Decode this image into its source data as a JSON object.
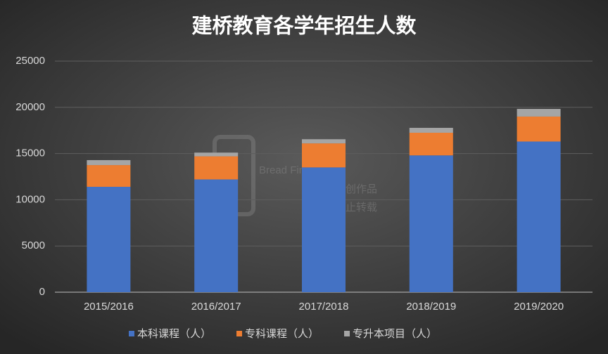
{
  "chart_data": {
    "type": "stacked_bar",
    "title": "建桥教育各学年招生人数",
    "categories": [
      "2015/2016",
      "2016/2017",
      "2017/2018",
      "2018/2019",
      "2019/2020"
    ],
    "series": [
      {
        "name": "本科课程（人）",
        "color": "#4472c4",
        "values": [
          11400,
          12200,
          13500,
          14800,
          16300
        ]
      },
      {
        "name": "专科课程（人）",
        "color": "#ed7d31",
        "values": [
          2350,
          2500,
          2600,
          2450,
          2700
        ]
      },
      {
        "name": "专升本项目（人）",
        "color": "#a5a5a5",
        "values": [
          540,
          400,
          450,
          530,
          830
        ]
      }
    ],
    "ylim": [
      0,
      25000
    ],
    "yticks": [
      0,
      5000,
      10000,
      15000,
      20000,
      25000
    ],
    "grid": true,
    "legend": "bottom",
    "watermark": [
      "Bread Finance",
      "原创作品",
      "禁止转载"
    ]
  }
}
